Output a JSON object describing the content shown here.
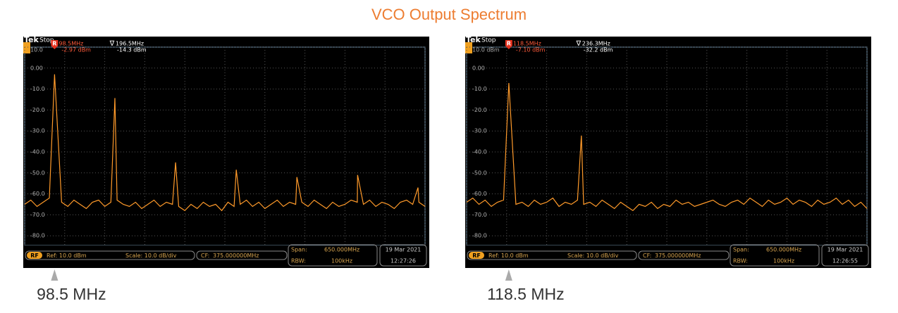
{
  "title": "VCO Output Spectrum",
  "chart_data": [
    {
      "type": "line",
      "brand": "Tek",
      "status": "Stop",
      "color": "#ff9a2a",
      "x": [
        50,
        60,
        70,
        80,
        90,
        98.5,
        110,
        120,
        130,
        140,
        150,
        160,
        170,
        180,
        190,
        196.5,
        200,
        210,
        220,
        230,
        240,
        250,
        260,
        270,
        280,
        290,
        295,
        300,
        310,
        320,
        330,
        340,
        350,
        360,
        370,
        380,
        390,
        393.5,
        400,
        410,
        420,
        430,
        440,
        450,
        460,
        470,
        480,
        490,
        492,
        500,
        510,
        520,
        530,
        540,
        550,
        560,
        570,
        580,
        590,
        590.5,
        600,
        610,
        620,
        630,
        640,
        650,
        660,
        670,
        680,
        688.5,
        690,
        700
      ],
      "values": [
        -65,
        -63,
        -66,
        -64,
        -62,
        -2.97,
        -64,
        -66,
        -63,
        -65,
        -67,
        -64,
        -63,
        -66,
        -64,
        -14.3,
        -63,
        -65,
        -66,
        -64,
        -67,
        -65,
        -63,
        -66,
        -64,
        -65,
        -45,
        -66,
        -68,
        -65,
        -67,
        -64,
        -66,
        -65,
        -68,
        -64,
        -66,
        -48.5,
        -65,
        -63,
        -66,
        -64,
        -67,
        -65,
        -63,
        -66,
        -64,
        -65,
        -52,
        -64,
        -66,
        -63,
        -65,
        -67,
        -64,
        -66,
        -65,
        -63,
        -64,
        -51,
        -65,
        -63,
        -66,
        -64,
        -65,
        -67,
        -64,
        -63,
        -65,
        -57,
        -64,
        -66
      ],
      "xlim": [
        50,
        700
      ],
      "xticks": [
        50,
        115,
        180,
        245,
        310,
        375,
        440,
        505,
        570,
        635,
        700
      ],
      "ylim": [
        -90,
        10
      ],
      "yticks": [
        {
          "value": 10,
          "label": "10.0"
        },
        {
          "value": 0,
          "label": "0.00"
        },
        {
          "value": -10,
          "label": "-10.0"
        },
        {
          "value": -20,
          "label": "-20.0"
        },
        {
          "value": -30,
          "label": "-30.0"
        },
        {
          "value": -40,
          "label": "-40.0"
        },
        {
          "value": -50,
          "label": "-50.0"
        },
        {
          "value": -60,
          "label": "-60.0"
        },
        {
          "value": -70,
          "label": "-70.0"
        },
        {
          "value": -80,
          "label": "-80.0"
        }
      ],
      "grid": true,
      "markers": [
        {
          "symbol": "R",
          "x": 98.5,
          "frequency": "98.5MHz",
          "level": "-2.97 dBm"
        },
        {
          "symbol": "∇",
          "x": 196.5,
          "frequency": "196.5MHz",
          "level": "-14.3 dBm"
        }
      ],
      "input": "RF",
      "reference": "Ref: 10.0 dBm",
      "scale": "Scale: 10.0 dB/div",
      "cf_label": "CF:",
      "center_frequency": "375.000000MHz",
      "span_label": "Span:",
      "span": "650.000MHz",
      "rbw_label": "RBW:",
      "rbw": "100kHz",
      "date": "19 Mar 2021",
      "time": "12:27:26",
      "caption": "98.5 MHz"
    },
    {
      "type": "line",
      "brand": "Tek",
      "status": "Stop",
      "color": "#ff9a2a",
      "x": [
        50,
        60,
        70,
        80,
        90,
        100,
        110,
        118.5,
        130,
        140,
        150,
        160,
        170,
        180,
        190,
        200,
        210,
        220,
        230,
        236.3,
        240,
        250,
        260,
        270,
        280,
        290,
        300,
        310,
        320,
        330,
        340,
        350,
        360,
        370,
        380,
        390,
        400,
        410,
        420,
        430,
        440,
        450,
        460,
        470,
        480,
        490,
        500,
        510,
        520,
        530,
        540,
        550,
        560,
        570,
        580,
        590,
        600,
        610,
        620,
        630,
        640,
        650,
        660,
        670,
        680,
        690,
        700
      ],
      "values": [
        -64,
        -62,
        -65,
        -63,
        -66,
        -64,
        -63,
        -7.1,
        -65,
        -64,
        -66,
        -63,
        -65,
        -64,
        -62,
        -66,
        -64,
        -65,
        -63,
        -32.2,
        -65,
        -64,
        -66,
        -63,
        -65,
        -67,
        -64,
        -66,
        -68,
        -65,
        -66,
        -64,
        -67,
        -65,
        -66,
        -63,
        -65,
        -64,
        -66,
        -65,
        -64,
        -63,
        -65,
        -66,
        -64,
        -63,
        -65,
        -62,
        -64,
        -66,
        -63,
        -65,
        -64,
        -62,
        -65,
        -63,
        -64,
        -66,
        -63,
        -65,
        -64,
        -62,
        -65,
        -63,
        -66,
        -64,
        -67
      ],
      "xlim": [
        50,
        700
      ],
      "xticks": [
        50,
        115,
        180,
        245,
        310,
        375,
        440,
        505,
        570,
        635,
        700
      ],
      "ylim": [
        -90,
        10
      ],
      "yticks": [
        {
          "value": 10,
          "label": "10.0 dBm"
        },
        {
          "value": 0,
          "label": "0.00"
        },
        {
          "value": -10,
          "label": "-10.0"
        },
        {
          "value": -20,
          "label": "-20.0"
        },
        {
          "value": -30,
          "label": "-30.0"
        },
        {
          "value": -40,
          "label": "-40.0"
        },
        {
          "value": -50,
          "label": "-50.0"
        },
        {
          "value": -60,
          "label": "-60.0"
        },
        {
          "value": -70,
          "label": "-70.0"
        },
        {
          "value": -80,
          "label": "-80.0"
        }
      ],
      "grid": true,
      "markers": [
        {
          "symbol": "R",
          "x": 118.5,
          "frequency": "118.5MHz",
          "level": "-7.10 dBm"
        },
        {
          "symbol": "∇",
          "x": 236.3,
          "frequency": "236.3MHz",
          "level": "-32.2 dBm"
        }
      ],
      "input": "RF",
      "reference": "Ref: 10.0 dBm",
      "scale": "Scale: 10.0 dB/div",
      "cf_label": "CF:",
      "center_frequency": "375.000000MHz",
      "span_label": "Span:",
      "span": "650.000MHz",
      "rbw_label": "RBW:",
      "rbw": "100kHz",
      "date": "19 Mar 2021",
      "time": "12:26:55",
      "caption": "118.5 MHz"
    }
  ]
}
